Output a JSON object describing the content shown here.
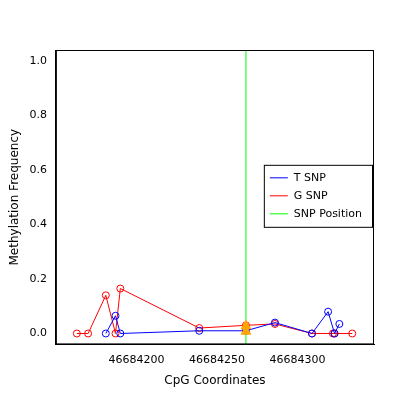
{
  "chart_data": {
    "type": "scatter",
    "x_label": "CpG Coordinates",
    "y_label": "Methylation Frequency",
    "xlim": [
      46684150,
      46684347.5
    ],
    "ylim": [
      -0.04,
      1.04
    ],
    "xticks": [
      46684200,
      46684250,
      46684300
    ],
    "yticks": [
      {
        "value": 0,
        "label": "0.0"
      },
      {
        "value": 0.2,
        "label": "0.2"
      },
      {
        "value": 0.4,
        "label": "0.4"
      },
      {
        "value": 0.6,
        "label": "0.6"
      },
      {
        "value": 0.8,
        "label": "0.8"
      },
      {
        "value": 1,
        "label": "1.0"
      }
    ],
    "grid": false,
    "legend": "right",
    "series": [
      {
        "name": "T SNP",
        "color": "#0000ff",
        "marker": "circle",
        "line_style": "solid",
        "x": [
          46684181,
          46684187,
          46684190,
          46684239,
          46684268,
          46684286,
          46684309,
          46684319,
          46684323,
          46684326
        ],
        "values": [
          0,
          0.065,
          0,
          0.01,
          0.01,
          0.04,
          0,
          0.08,
          0,
          0.035
        ]
      },
      {
        "name": "G SNP",
        "color": "#ff0000",
        "marker": "circle",
        "line_style": "solid",
        "x": [
          46684163,
          46684170,
          46684181,
          46684187,
          46684190,
          46684239,
          46684268,
          46684286,
          46684309,
          46684322,
          46684323,
          46684334
        ],
        "values": [
          0,
          0,
          0.14,
          0,
          0.165,
          0.02,
          0.03,
          0.035,
          0,
          0,
          0,
          0
        ]
      }
    ],
    "snp_line": {
      "name": "SNP Position",
      "x": 46684268,
      "color": "#00ff00"
    },
    "snp_marker": {
      "marker": "triangle",
      "color": "#ffa500"
    }
  }
}
